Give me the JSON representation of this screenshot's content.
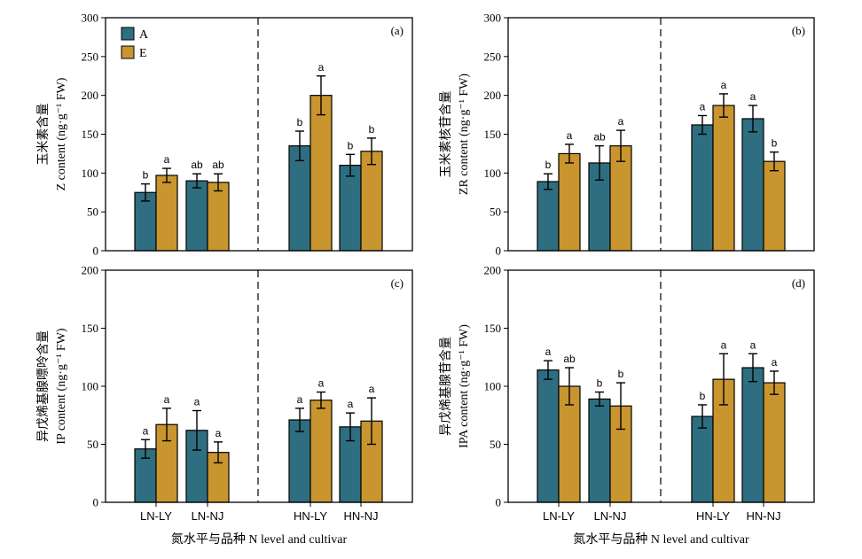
{
  "colors": {
    "A": "#2e6e80",
    "E": "#c9952f"
  },
  "legend": [
    {
      "key": "A",
      "label": "A"
    },
    {
      "key": "E",
      "label": "E"
    }
  ],
  "x_axis_label": "氮水平与品种 N level and cultivar",
  "chart_data": [
    {
      "type": "bar",
      "panel": "(a)",
      "ylabel_cn": "玉米素含量",
      "ylabel_en": "Z content (ng·g⁻¹ FW)",
      "ylim": [
        0,
        300
      ],
      "yticks": [
        0,
        50,
        100,
        150,
        200,
        250,
        300
      ],
      "categories": [
        "LN-LY",
        "LN-NJ",
        "HN-LY",
        "HN-NJ"
      ],
      "show_xticks": false,
      "series": [
        {
          "name": "A",
          "values": [
            75,
            90,
            135,
            110
          ],
          "errors": [
            11,
            9,
            19,
            14
          ],
          "letters": [
            "b",
            "ab",
            "b",
            "b"
          ]
        },
        {
          "name": "E",
          "values": [
            97,
            88,
            200,
            128
          ],
          "errors": [
            9,
            11,
            25,
            17
          ],
          "letters": [
            "a",
            "ab",
            "a",
            "b"
          ]
        }
      ]
    },
    {
      "type": "bar",
      "panel": "(b)",
      "ylabel_cn": "玉米素核苷含量",
      "ylabel_en": "ZR content (ng·g⁻¹ FW)",
      "ylim": [
        0,
        300
      ],
      "yticks": [
        0,
        50,
        100,
        150,
        200,
        250,
        300
      ],
      "categories": [
        "LN-LY",
        "LN-NJ",
        "HN-LY",
        "HN-NJ"
      ],
      "show_xticks": false,
      "series": [
        {
          "name": "A",
          "values": [
            89,
            113,
            162,
            170
          ],
          "errors": [
            10,
            22,
            12,
            17
          ],
          "letters": [
            "b",
            "ab",
            "a",
            "a"
          ]
        },
        {
          "name": "E",
          "values": [
            125,
            135,
            187,
            115
          ],
          "errors": [
            12,
            20,
            15,
            12
          ],
          "letters": [
            "a",
            "a",
            "a",
            "b"
          ]
        }
      ]
    },
    {
      "type": "bar",
      "panel": "(c)",
      "ylabel_cn": "异戊烯基腺嘌呤含量",
      "ylabel_en": "IP content (ng·g⁻¹ FW)",
      "ylim": [
        0,
        200
      ],
      "yticks": [
        0,
        50,
        100,
        150,
        200
      ],
      "categories": [
        "LN-LY",
        "LN-NJ",
        "HN-LY",
        "HN-NJ"
      ],
      "show_xticks": true,
      "series": [
        {
          "name": "A",
          "values": [
            46,
            62,
            71,
            65
          ],
          "errors": [
            8,
            17,
            10,
            12
          ],
          "letters": [
            "a",
            "a",
            "a",
            "a"
          ]
        },
        {
          "name": "E",
          "values": [
            67,
            43,
            88,
            70
          ],
          "errors": [
            14,
            9,
            7,
            20
          ],
          "letters": [
            "a",
            "a",
            "a",
            "a"
          ]
        }
      ]
    },
    {
      "type": "bar",
      "panel": "(d)",
      "ylabel_cn": "异戊烯基腺苷含量",
      "ylabel_en": "IPA content (ng·g⁻¹ FW)",
      "ylim": [
        0,
        200
      ],
      "yticks": [
        0,
        50,
        100,
        150,
        200
      ],
      "categories": [
        "LN-LY",
        "LN-NJ",
        "HN-LY",
        "HN-NJ"
      ],
      "show_xticks": true,
      "series": [
        {
          "name": "A",
          "values": [
            114,
            89,
            74,
            116
          ],
          "errors": [
            8,
            6,
            10,
            12
          ],
          "letters": [
            "a",
            "b",
            "b",
            "a"
          ]
        },
        {
          "name": "E",
          "values": [
            100,
            83,
            106,
            103
          ],
          "errors": [
            16,
            20,
            22,
            10
          ],
          "letters": [
            "ab",
            "b",
            "a",
            "a"
          ]
        }
      ]
    }
  ]
}
